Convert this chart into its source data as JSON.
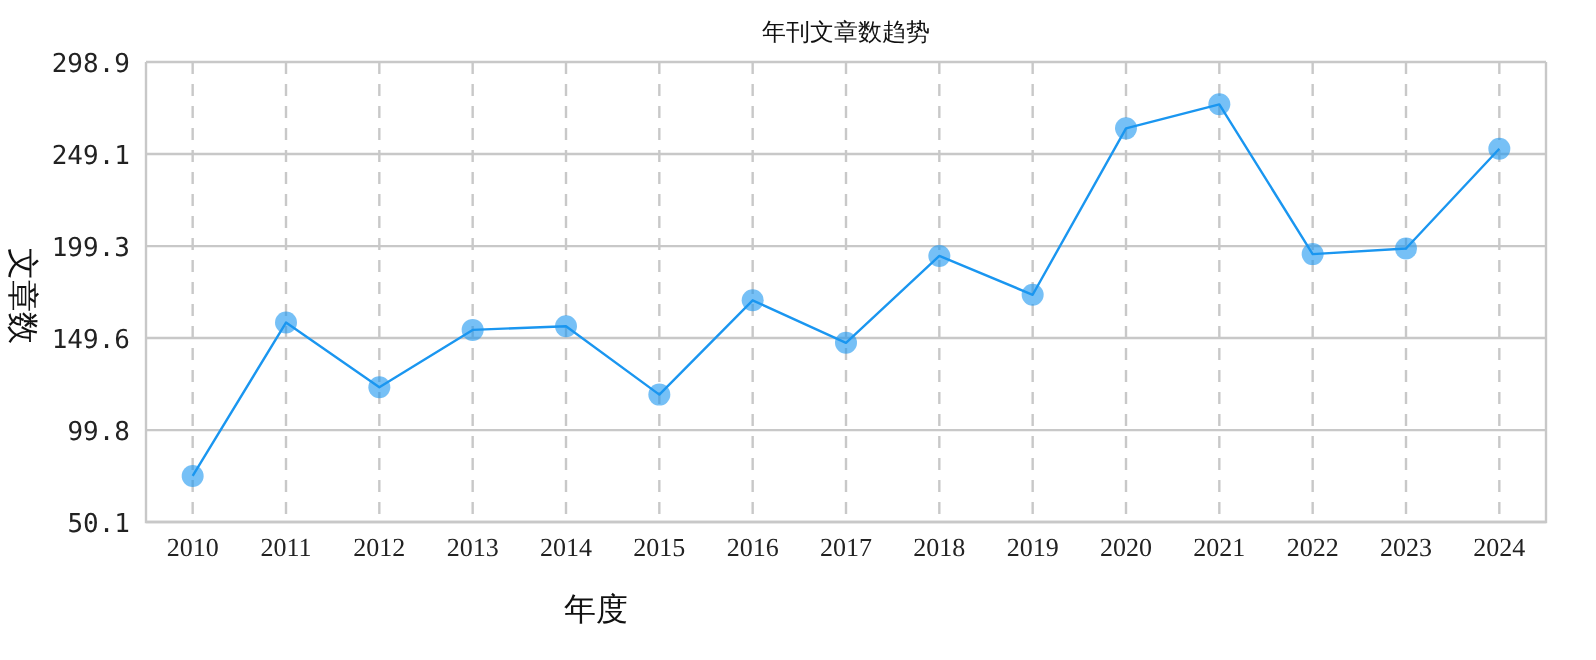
{
  "chart_data": {
    "type": "line",
    "title": "年刊文章数趋势",
    "xlabel": "年度",
    "ylabel": "文章数",
    "categories": [
      "2010",
      "2011",
      "2012",
      "2013",
      "2014",
      "2015",
      "2016",
      "2017",
      "2018",
      "2019",
      "2020",
      "2021",
      "2022",
      "2023",
      "2024"
    ],
    "values": [
      75,
      158,
      123,
      154,
      156,
      119,
      170,
      147,
      194,
      173,
      263,
      276,
      195,
      198,
      252
    ],
    "color": "#1a96f0",
    "marker": "circle",
    "grid": true,
    "ylim": [
      50.1,
      298.9
    ],
    "yticks": [
      50.1,
      99.8,
      149.6,
      199.3,
      249.1,
      298.9
    ]
  }
}
